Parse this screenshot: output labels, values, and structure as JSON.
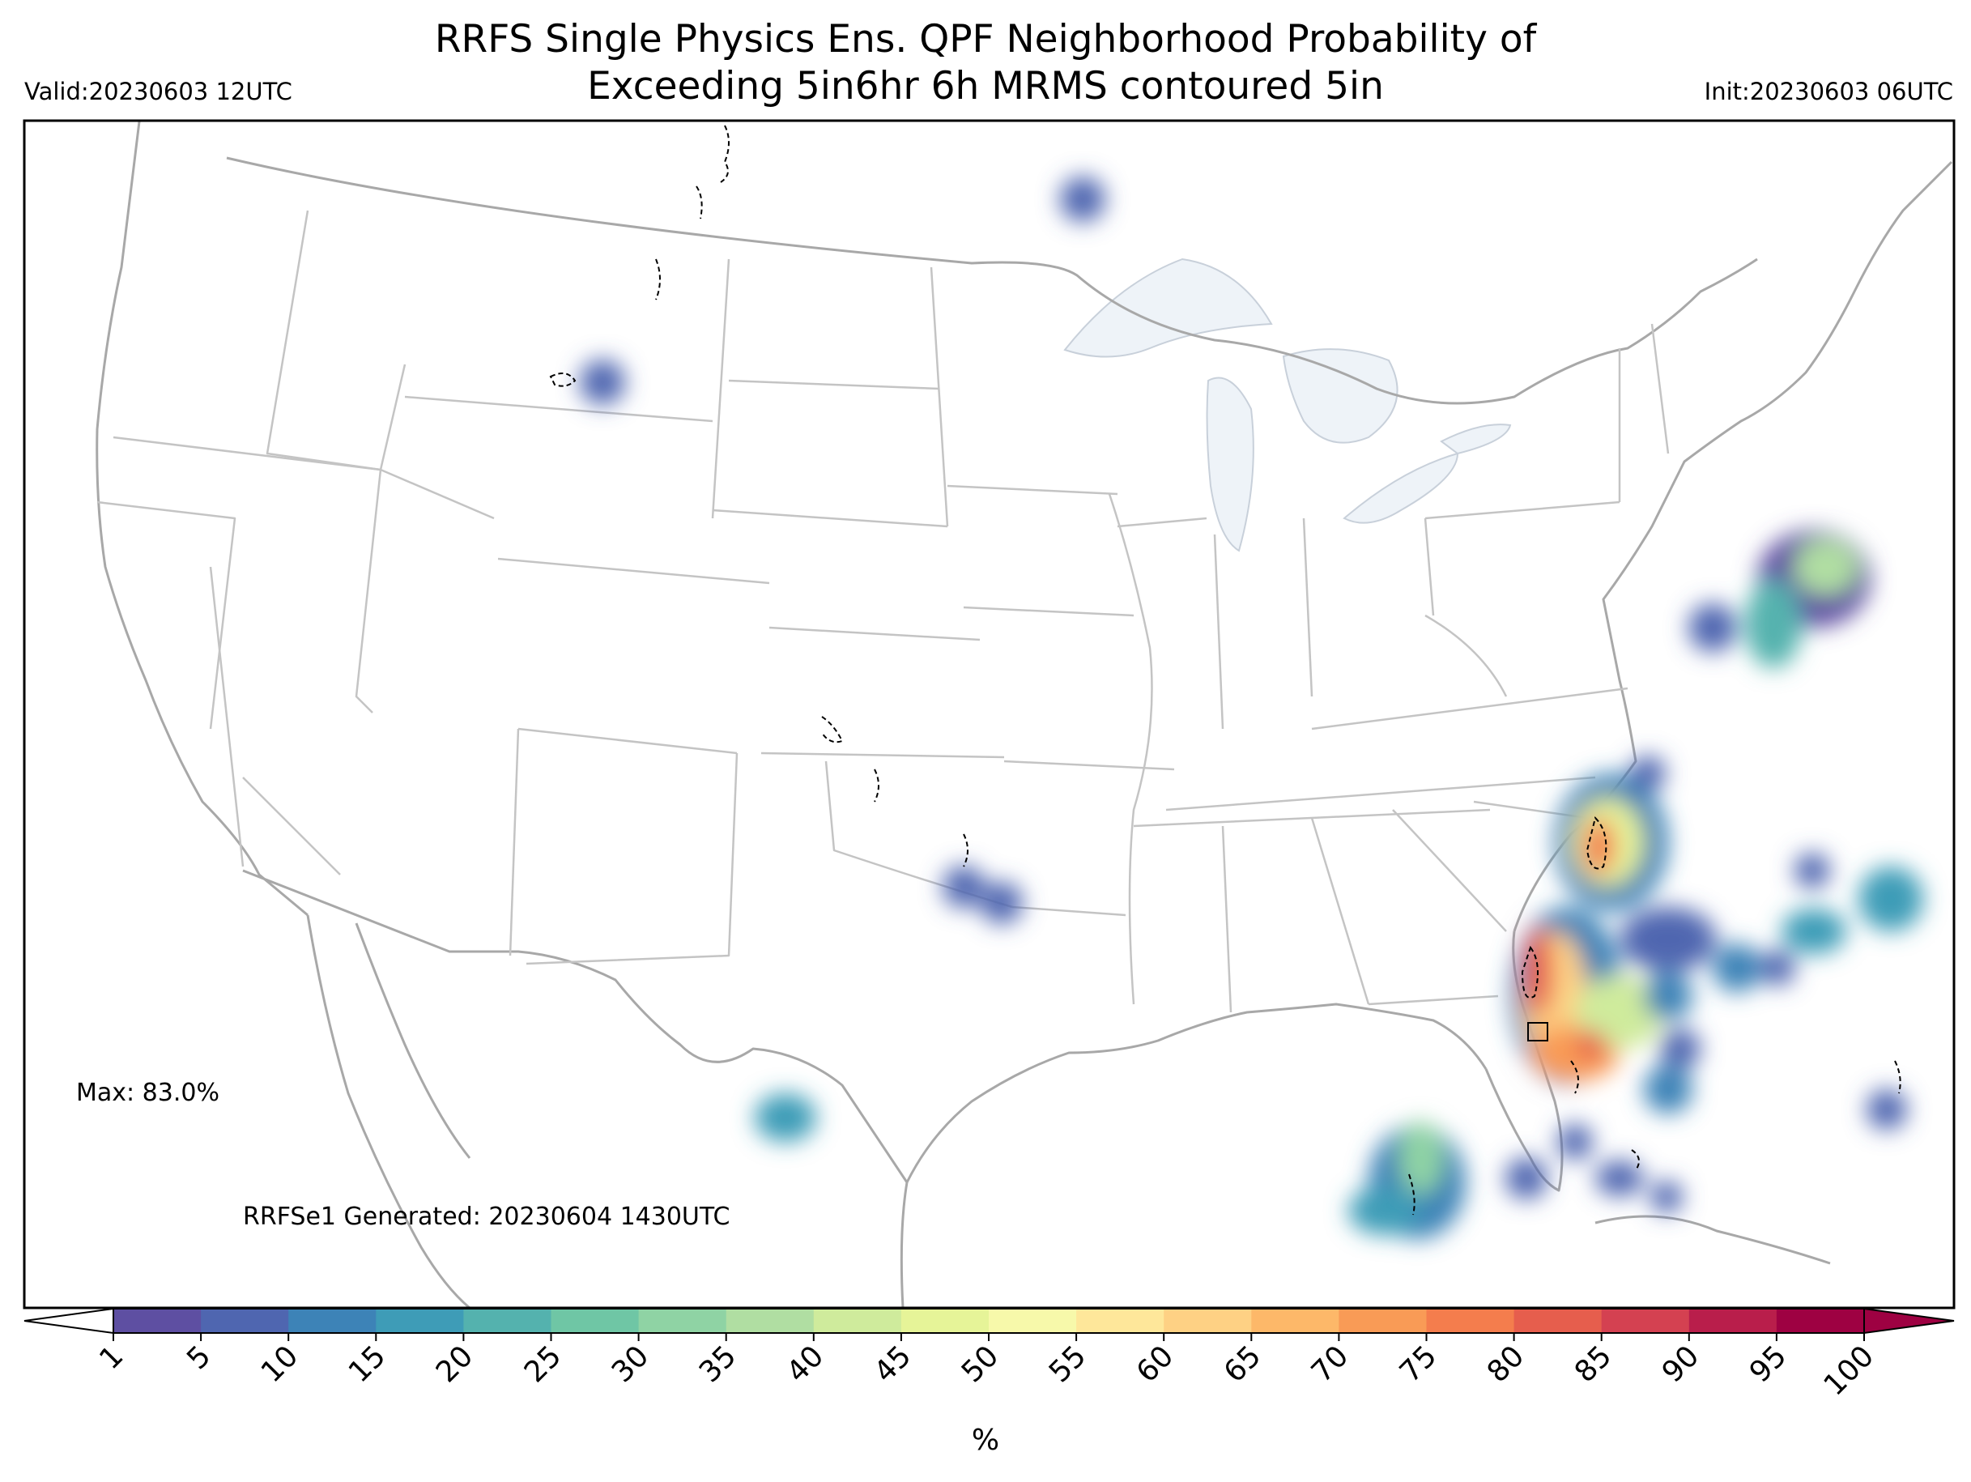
{
  "title_lines": [
    "RRFS Single Physics Ens. QPF Neighborhood Probability of",
    "Exceeding 5in6hr 6h MRMS contoured 5in"
  ],
  "valid_text": "Valid:20230603 12UTC",
  "init_text": "Init:20230603 06UTC",
  "max_text": "Max: 83.0%",
  "generated_text": "RRFSe1 Generated: 20230604 1430UTC",
  "colorbar": {
    "ticks": [
      "1",
      "5",
      "10",
      "15",
      "20",
      "25",
      "30",
      "35",
      "40",
      "45",
      "50",
      "55",
      "60",
      "65",
      "70",
      "75",
      "80",
      "85",
      "90",
      "95",
      "100"
    ],
    "colors": [
      "#5e4fa2",
      "#4f66b0",
      "#3d83b7",
      "#3e9cb7",
      "#54b2ae",
      "#6fc6a5",
      "#8fd3a4",
      "#b0dea2",
      "#cfeb9c",
      "#e6f498",
      "#f7f9aa",
      "#fee79a",
      "#fed184",
      "#fdb869",
      "#f99b56",
      "#f47d4d",
      "#e65e4d",
      "#d44151",
      "#b91e4b",
      "#9e0142"
    ],
    "under_color": "#ffffff",
    "over_color": "#9e0142",
    "unit": "%"
  },
  "colors": {
    "state_lines": "#c4c4c4",
    "coast_lines": "#a8a8a8",
    "lakes": "#eef3f8",
    "mrms_contour": "#000000"
  }
}
